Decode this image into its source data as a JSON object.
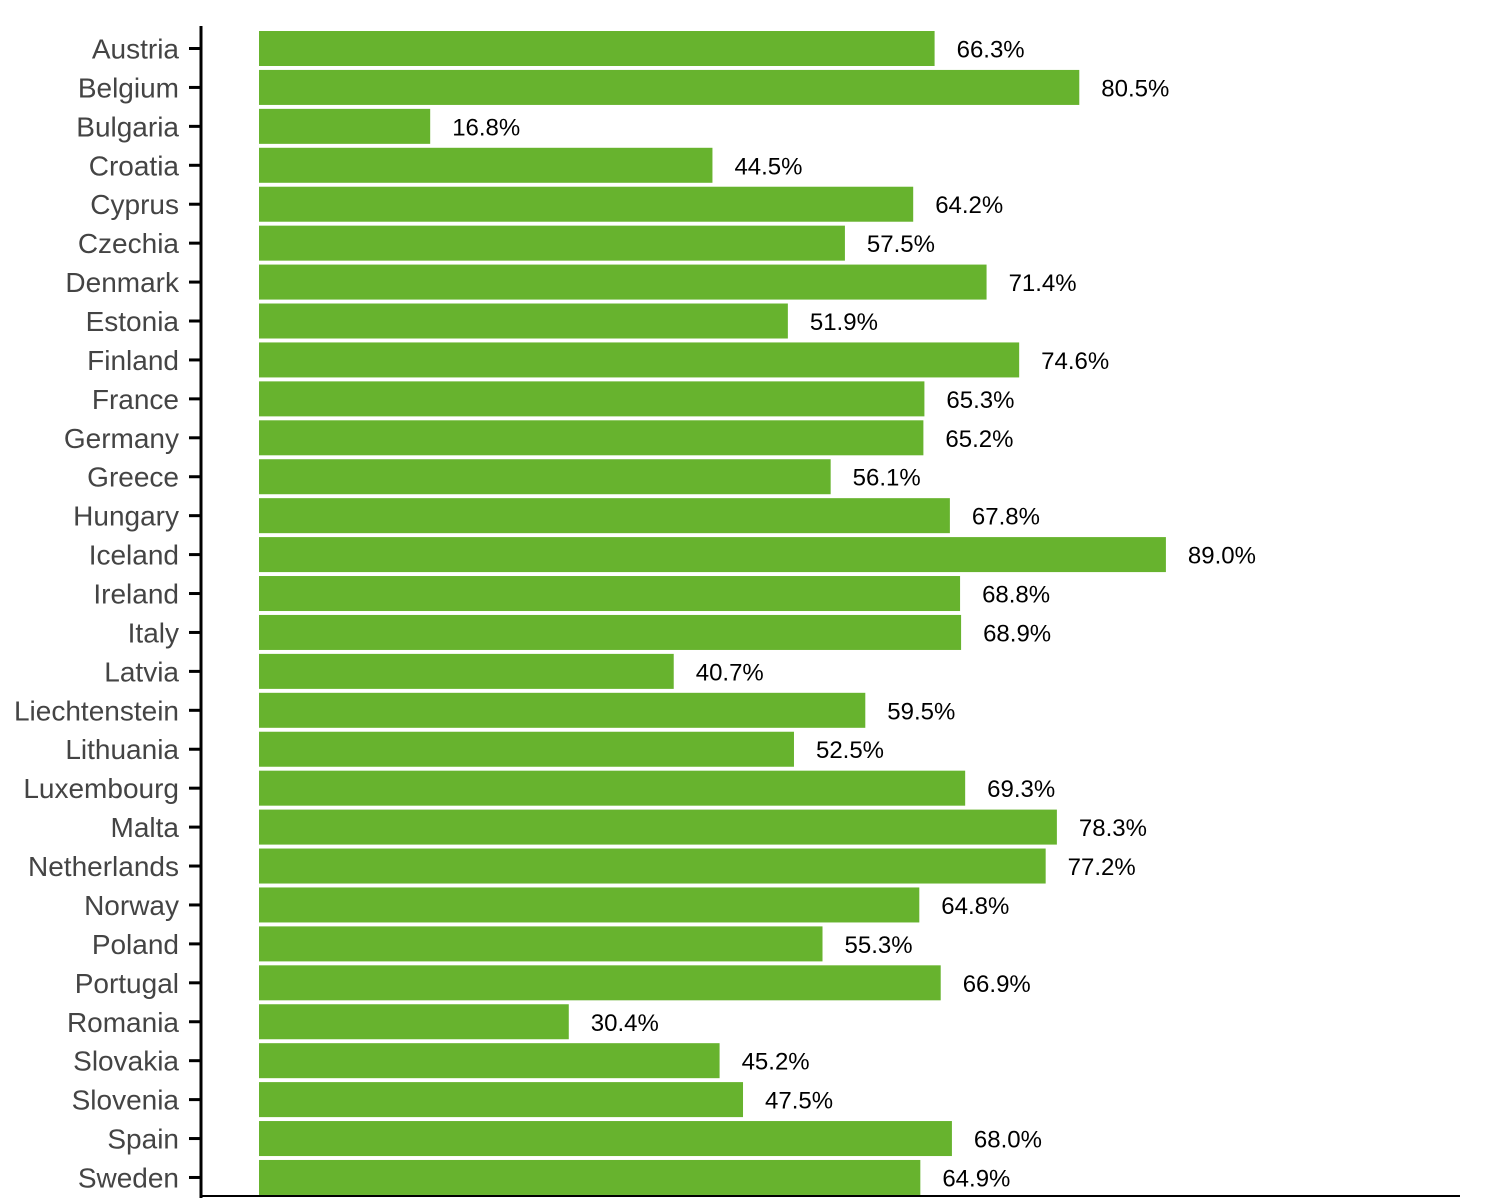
{
  "chart_data": {
    "type": "bar",
    "orientation": "horizontal",
    "categories": [
      "Austria",
      "Belgium",
      "Bulgaria",
      "Croatia",
      "Cyprus",
      "Czechia",
      "Denmark",
      "Estonia",
      "Finland",
      "France",
      "Germany",
      "Greece",
      "Hungary",
      "Iceland",
      "Ireland",
      "Italy",
      "Latvia",
      "Liechtenstein",
      "Lithuania",
      "Luxembourg",
      "Malta",
      "Netherlands",
      "Norway",
      "Poland",
      "Portugal",
      "Romania",
      "Slovakia",
      "Slovenia",
      "Spain",
      "Sweden"
    ],
    "values": [
      66.3,
      80.5,
      16.8,
      44.5,
      64.2,
      57.5,
      71.4,
      51.9,
      74.6,
      65.3,
      65.2,
      56.1,
      67.8,
      89.0,
      68.8,
      68.9,
      40.7,
      59.5,
      52.5,
      69.3,
      78.3,
      77.2,
      64.8,
      55.3,
      66.9,
      30.4,
      45.2,
      47.5,
      68.0,
      64.9
    ],
    "value_labels": [
      "66.3%",
      "80.5%",
      "16.8%",
      "44.5%",
      "64.2%",
      "57.5%",
      "71.4%",
      "51.9%",
      "74.6%",
      "65.3%",
      "65.2%",
      "56.1%",
      "67.8%",
      "89.0%",
      "68.8%",
      "68.9%",
      "40.7%",
      "59.5%",
      "52.5%",
      "69.3%",
      "78.3%",
      "77.2%",
      "64.8%",
      "55.3%",
      "66.9%",
      "30.4%",
      "45.2%",
      "47.5%",
      "68.0%",
      "64.9%"
    ],
    "title": "",
    "xlabel": "",
    "ylabel": "",
    "xlim": [
      0,
      100
    ],
    "grid": false,
    "bar_color": "#67b32e",
    "axis_color": "#000000",
    "label_color": "#444444"
  }
}
